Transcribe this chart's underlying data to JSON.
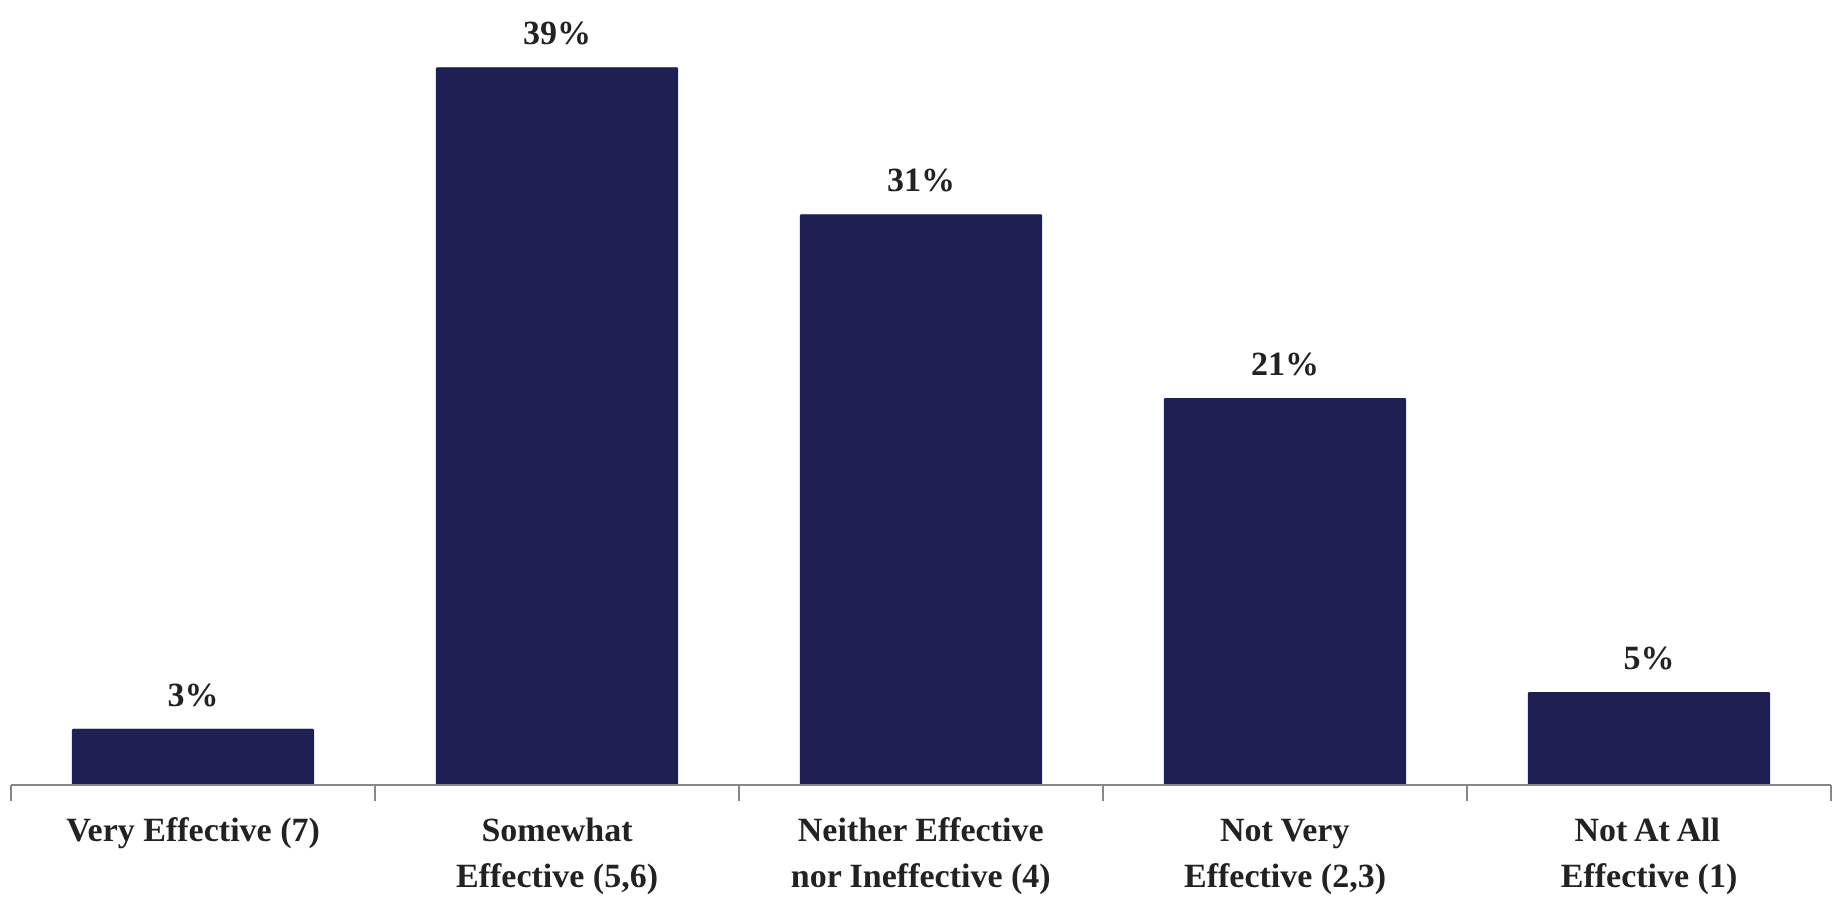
{
  "chart_data": {
    "type": "bar",
    "categories": [
      "Very Effective (7)",
      "Somewhat\nEffective (5,6)",
      "Neither Effective\nnor Ineffective (4)",
      "Not Very\nEffective (2,3)",
      "Not At All\nEffective (1)"
    ],
    "values": [
      3,
      39,
      31,
      21,
      5
    ],
    "value_labels": [
      "3%",
      "39%",
      "31%",
      "21%",
      "5%"
    ],
    "color": "#1d2050"
  }
}
